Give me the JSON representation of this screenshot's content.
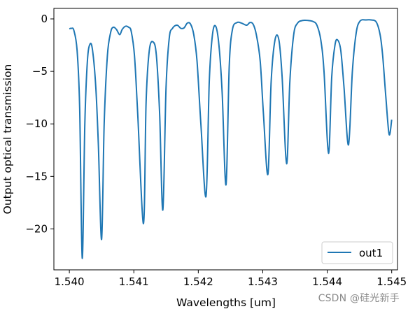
{
  "chart_data": {
    "type": "line",
    "xlabel": "Wavelengths [um]",
    "ylabel": "Output optical transmission",
    "xlim": [
      1.53976,
      1.54509
    ],
    "ylim": [
      -23.9,
      1.0
    ],
    "x_ticks": [
      "1.540",
      "1.541",
      "1.542",
      "1.543",
      "1.544",
      "1.545"
    ],
    "x_tick_values": [
      1.54,
      1.541,
      1.542,
      1.543,
      1.544,
      1.545
    ],
    "y_ticks": [
      "0",
      "−5",
      "−10",
      "−15",
      "−20"
    ],
    "y_tick_values": [
      0,
      -5,
      -10,
      -15,
      -20
    ],
    "legend_position": "lower-right",
    "grid": false,
    "series": [
      {
        "name": "out1",
        "color": "#1f77b4",
        "points": [
          [
            1.54,
            -0.95
          ],
          [
            1.54003,
            -0.9
          ],
          [
            1.54007,
            -1.1
          ],
          [
            1.54012,
            -3.0
          ],
          [
            1.54016,
            -8.5
          ],
          [
            1.5402,
            -22.8
          ],
          [
            1.54024,
            -10.0
          ],
          [
            1.54028,
            -4.0
          ],
          [
            1.54032,
            -2.4
          ],
          [
            1.54036,
            -3.0
          ],
          [
            1.54041,
            -6.5
          ],
          [
            1.54045,
            -12.0
          ],
          [
            1.5405,
            -21.0
          ],
          [
            1.54054,
            -10.0
          ],
          [
            1.54059,
            -3.5
          ],
          [
            1.54064,
            -1.3
          ],
          [
            1.54068,
            -0.8
          ],
          [
            1.54073,
            -1.0
          ],
          [
            1.54078,
            -1.5
          ],
          [
            1.54082,
            -1.0
          ],
          [
            1.54087,
            -0.7
          ],
          [
            1.54092,
            -0.8
          ],
          [
            1.54096,
            -1.2
          ],
          [
            1.54101,
            -3.5
          ],
          [
            1.54106,
            -9.0
          ],
          [
            1.54115,
            -19.5
          ],
          [
            1.54119,
            -8.0
          ],
          [
            1.54124,
            -3.0
          ],
          [
            1.5413,
            -2.2
          ],
          [
            1.54135,
            -3.5
          ],
          [
            1.5414,
            -9.0
          ],
          [
            1.54145,
            -18.2
          ],
          [
            1.5415,
            -6.5
          ],
          [
            1.54155,
            -1.8
          ],
          [
            1.5416,
            -0.9
          ],
          [
            1.54167,
            -0.6
          ],
          [
            1.54173,
            -0.9
          ],
          [
            1.54178,
            -0.85
          ],
          [
            1.54183,
            -0.4
          ],
          [
            1.54188,
            -0.5
          ],
          [
            1.54193,
            -1.5
          ],
          [
            1.54198,
            -4.0
          ],
          [
            1.54204,
            -10.0
          ],
          [
            1.54212,
            -16.9
          ],
          [
            1.54217,
            -6.0
          ],
          [
            1.54222,
            -1.5
          ],
          [
            1.54227,
            -0.7
          ],
          [
            1.54232,
            -2.5
          ],
          [
            1.54237,
            -7.0
          ],
          [
            1.54243,
            -15.8
          ],
          [
            1.54248,
            -4.5
          ],
          [
            1.54253,
            -1.0
          ],
          [
            1.5426,
            -0.35
          ],
          [
            1.54267,
            -0.4
          ],
          [
            1.54275,
            -0.6
          ],
          [
            1.5428,
            -0.35
          ],
          [
            1.54285,
            -0.5
          ],
          [
            1.5429,
            -1.5
          ],
          [
            1.54296,
            -4.0
          ],
          [
            1.54301,
            -9.0
          ],
          [
            1.54308,
            -14.8
          ],
          [
            1.54313,
            -6.0
          ],
          [
            1.54319,
            -2.0
          ],
          [
            1.54325,
            -2.0
          ],
          [
            1.5433,
            -5.5
          ],
          [
            1.54337,
            -13.8
          ],
          [
            1.54342,
            -6.0
          ],
          [
            1.54348,
            -1.5
          ],
          [
            1.54354,
            -0.4
          ],
          [
            1.54362,
            -0.15
          ],
          [
            1.5437,
            -0.15
          ],
          [
            1.54378,
            -0.25
          ],
          [
            1.54384,
            -0.6
          ],
          [
            1.5439,
            -2.0
          ],
          [
            1.54395,
            -5.0
          ],
          [
            1.54402,
            -12.8
          ],
          [
            1.54407,
            -5.5
          ],
          [
            1.54412,
            -2.5
          ],
          [
            1.54416,
            -2.0
          ],
          [
            1.54421,
            -3.0
          ],
          [
            1.54426,
            -6.5
          ],
          [
            1.54433,
            -12.0
          ],
          [
            1.54439,
            -5.0
          ],
          [
            1.54445,
            -1.3
          ],
          [
            1.54451,
            -0.2
          ],
          [
            1.5446,
            -0.1
          ],
          [
            1.54468,
            -0.1
          ],
          [
            1.54476,
            -0.3
          ],
          [
            1.54482,
            -1.5
          ],
          [
            1.54486,
            -3.5
          ],
          [
            1.54491,
            -7.5
          ],
          [
            1.54496,
            -11.0
          ],
          [
            1.545,
            -9.6
          ]
        ]
      }
    ]
  },
  "watermark": "CSDN @硅光新手"
}
